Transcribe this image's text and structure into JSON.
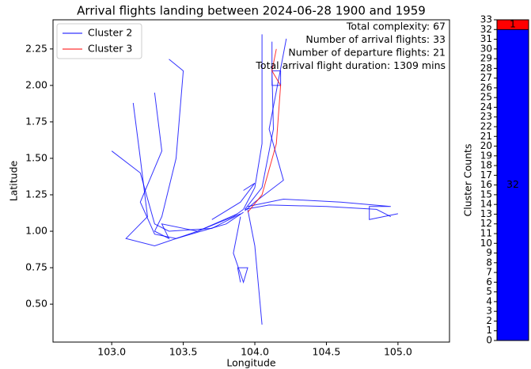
{
  "chart_data": [
    {
      "type": "line",
      "title": "Arrival flights landing between 2024-06-28 1900 and 1959",
      "xlabel": "Longitude",
      "ylabel": "Latitude",
      "xlim": [
        102.59,
        105.36
      ],
      "ylim": [
        0.24,
        2.45
      ],
      "xticks": [
        {
          "value": 103,
          "label": "103.0"
        },
        {
          "value": 103.5,
          "label": "103.5"
        },
        {
          "value": 104,
          "label": "104.0"
        },
        {
          "value": 104.5,
          "label": "104.5"
        },
        {
          "value": 105,
          "label": "105.0"
        }
      ],
      "yticks": [
        {
          "value": 0.5,
          "label": "0.50"
        },
        {
          "value": 0.75,
          "label": "0.75"
        },
        {
          "value": 1,
          "label": "1.00"
        },
        {
          "value": 1.25,
          "label": "1.25"
        },
        {
          "value": 1.5,
          "label": "1.50"
        },
        {
          "value": 1.75,
          "label": "1.75"
        },
        {
          "value": 2,
          "label": "2.00"
        },
        {
          "value": 2.25,
          "label": "2.25"
        }
      ],
      "legend": "upper left",
      "annotations": [
        "Total complexity: 67",
        "Number of arrival flights: 33",
        "Number of departure flights: 21",
        "Total arrival flight duration: 1309 mins"
      ],
      "series": [
        {
          "name": "Cluster 2",
          "color": "#0000ff",
          "tracks": [
            {
              "x": [
                104.05,
                104.05,
                104.0,
                103.92
              ],
              "y": [
                2.35,
                1.6,
                1.3,
                1.15
              ]
            },
            {
              "x": [
                104.12,
                104.12,
                104.18,
                104.18,
                104.12,
                104.13,
                104.05,
                103.93
              ],
              "y": [
                2.3,
                2.0,
                2.0,
                2.1,
                2.1,
                1.7,
                1.3,
                1.15
              ]
            },
            {
              "x": [
                104.95,
                104.85,
                104.5,
                104.1,
                103.93
              ],
              "y": [
                1.1,
                1.15,
                1.17,
                1.18,
                1.15
              ]
            },
            {
              "x": [
                105.0,
                104.8,
                104.8,
                104.95,
                104.6,
                104.2,
                103.95
              ],
              "y": [
                1.12,
                1.08,
                1.17,
                1.17,
                1.2,
                1.22,
                1.17
              ]
            },
            {
              "x": [
                103.4,
                103.5,
                103.45,
                103.35,
                103.3,
                103.4,
                103.35,
                103.6,
                103.85,
                103.92
              ],
              "y": [
                2.18,
                2.1,
                1.5,
                1.1,
                1.0,
                0.95,
                1.05,
                1.0,
                1.1,
                1.15
              ]
            },
            {
              "x": [
                103.0,
                103.2,
                103.3,
                103.4,
                103.7,
                103.9
              ],
              "y": [
                1.55,
                1.4,
                1.05,
                1.0,
                1.02,
                1.12
              ]
            },
            {
              "x": [
                103.15,
                103.2,
                103.25,
                103.1,
                103.3,
                103.6,
                103.88
              ],
              "y": [
                1.88,
                1.5,
                1.1,
                0.95,
                0.9,
                1.0,
                1.12
              ]
            },
            {
              "x": [
                103.3,
                103.35,
                103.2,
                103.3,
                103.45,
                103.8,
                103.92
              ],
              "y": [
                1.95,
                1.55,
                1.2,
                0.98,
                0.95,
                1.05,
                1.13
              ]
            },
            {
              "x": [
                104.05,
                104.0,
                103.95
              ],
              "y": [
                0.36,
                0.9,
                1.15
              ]
            },
            {
              "x": [
                103.9,
                103.88,
                103.95,
                103.92,
                103.85,
                103.9
              ],
              "y": [
                0.65,
                0.75,
                0.75,
                0.65,
                0.85,
                1.1
              ]
            },
            {
              "x": [
                104.22,
                104.1,
                104.2,
                104.0,
                103.93
              ],
              "y": [
                2.32,
                1.7,
                1.35,
                1.2,
                1.14
              ]
            },
            {
              "x": [
                103.7,
                103.9,
                104.0,
                103.92
              ],
              "y": [
                1.08,
                1.2,
                1.33,
                1.28
              ]
            }
          ]
        },
        {
          "name": "Cluster 3",
          "color": "#ff0000",
          "tracks": [
            {
              "x": [
                104.15,
                104.12,
                104.18,
                104.15,
                104.05,
                103.95
              ],
              "y": [
                2.25,
                2.1,
                2.0,
                1.6,
                1.25,
                1.13
              ]
            }
          ]
        }
      ]
    },
    {
      "type": "bar",
      "ylabel": "Cluster Counts",
      "categories": [
        null
      ],
      "ylim": [
        0,
        33
      ],
      "yticks": [
        0,
        1,
        2,
        3,
        4,
        5,
        6,
        7,
        8,
        9,
        10,
        11,
        12,
        13,
        14,
        15,
        16,
        17,
        18,
        19,
        20,
        21,
        22,
        23,
        24,
        25,
        26,
        27,
        28,
        29,
        30,
        31,
        32,
        33
      ],
      "series": [
        {
          "name": "Cluster 2",
          "color": "#0000ff",
          "values": [
            32
          ]
        },
        {
          "name": "Cluster 3",
          "color": "#ff0000",
          "values": [
            1
          ]
        }
      ]
    }
  ]
}
